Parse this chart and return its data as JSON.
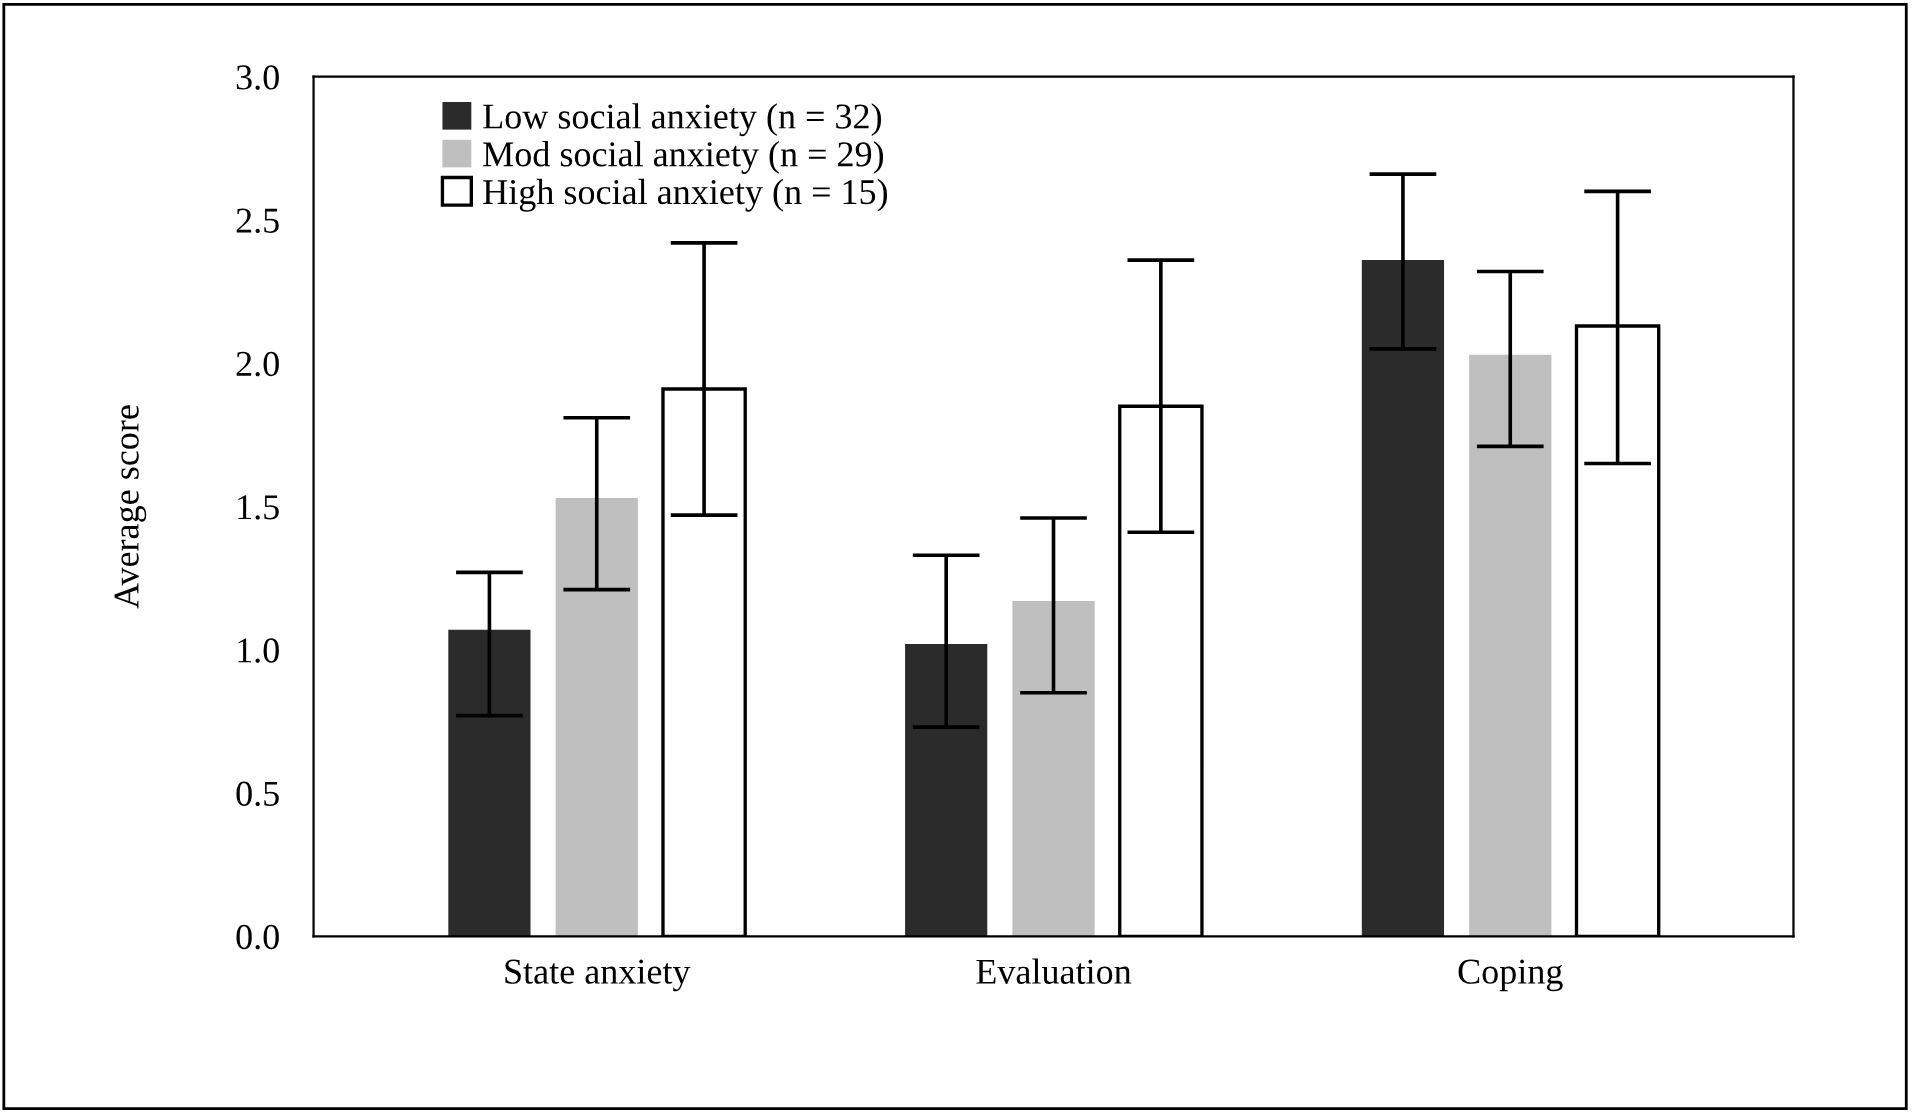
{
  "chart_data": {
    "type": "bar",
    "ylabel": "Average score",
    "categories": [
      "State anxiety",
      "Evaluation",
      "Coping"
    ],
    "series": [
      {
        "name": "Low social anxiety (n = 32)",
        "color": "#2b2b2b",
        "values": [
          1.07,
          1.02,
          2.36
        ],
        "errors": [
          [
            0.77,
            1.27
          ],
          [
            0.73,
            1.33
          ],
          [
            2.05,
            2.66
          ]
        ]
      },
      {
        "name": "Mod social anxiety (n = 29)",
        "color": "#bfbfbf",
        "values": [
          1.53,
          1.17,
          2.03
        ],
        "errors": [
          [
            1.21,
            1.81
          ],
          [
            0.85,
            1.46
          ],
          [
            1.71,
            2.32
          ]
        ]
      },
      {
        "name": "High social anxiety (n = 15)",
        "color": "#ffffff",
        "values": [
          1.91,
          1.85,
          2.13
        ],
        "errors": [
          [
            1.47,
            2.42
          ],
          [
            1.41,
            2.36
          ],
          [
            1.65,
            2.6
          ]
        ]
      }
    ],
    "ylim": [
      0,
      3
    ],
    "yticks": [
      {
        "value": 0,
        "label": "0.0"
      },
      {
        "value": 0.5,
        "label": "0.5"
      },
      {
        "value": 1,
        "label": "1.0"
      },
      {
        "value": 1.5,
        "label": "1.5"
      },
      {
        "value": 2,
        "label": "2.0"
      },
      {
        "value": 2.5,
        "label": "2.5"
      },
      {
        "value": 3,
        "label": "3.0"
      }
    ],
    "legend": "top left",
    "grid": false
  }
}
